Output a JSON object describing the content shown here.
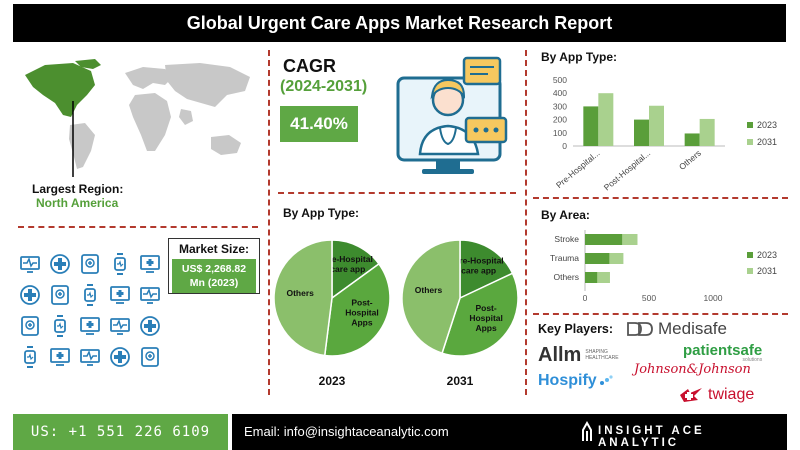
{
  "title": "Global Urgent Care Apps Market Research Report",
  "region": {
    "label": "Largest Region:",
    "value": "North America"
  },
  "market_size": {
    "label": "Market Size:",
    "value_line1": "US$ 2,268.82",
    "value_line2": "Mn (2023)"
  },
  "cagr": {
    "label": "CAGR",
    "period": "(2024-2031)",
    "value": "41.40%"
  },
  "pie_section_title": "By App Type:",
  "bar_section_title": "By App Type:",
  "area_section_title": "By Area:",
  "key_players_title": "Key Players:",
  "players": [
    "Medisafe",
    "Allm",
    "SHAPING HEALTHCARE",
    "patientsafe",
    "solutions",
    "Hospify",
    "Johnson&Johnson",
    "twiage"
  ],
  "footer": {
    "phone": "US: +1 551 226 6109",
    "email": "Email: info@insightaceanalytic.com",
    "brand": "INSIGHT ACE ANALYTIC"
  },
  "colors": {
    "series_2023": "#5a9e3a",
    "series_2031": "#a9d18e",
    "pie_dark": "#3d8b2e",
    "pie_mid": "#5aa83e",
    "pie_light": "#8bbf6b",
    "accent_red": "#b33a2e"
  },
  "icons": [
    "monitor-heart-icon",
    "medical-cross-icon",
    "tablet-medical-icon",
    "smartwatch-icon",
    "screen-medical-icon",
    "chat-medical-icon",
    "doctor-icon",
    "tablet-cross-icon",
    "stethoscope-icon",
    "pill-phone-icon",
    "clipboard-icon",
    "shield-cross-icon",
    "chat-bubbles-icon",
    "user-circle-icon",
    "globe-medical-icon",
    "headset-doctor-icon",
    "laptop-medical-icon",
    "heartbeat-icon",
    "doctor-screen-icon",
    "first-aid-kit-icon"
  ],
  "chart_data": [
    {
      "type": "pie",
      "title": "2023",
      "labels": [
        "Pre-Hospital care app",
        "Post-Hospital Apps",
        "Others"
      ],
      "values": [
        15,
        37,
        48
      ]
    },
    {
      "type": "pie",
      "title": "2031",
      "labels": [
        "Pre-Hospital care app",
        "Post-Hospital Apps",
        "Others"
      ],
      "values": [
        18,
        37,
        45
      ]
    },
    {
      "type": "bar",
      "orientation": "vertical",
      "categories": [
        "Pre-Hospital...",
        "Post-Hospital...",
        "Others"
      ],
      "series": [
        {
          "name": "2023",
          "values": [
            300,
            200,
            95
          ]
        },
        {
          "name": "2031",
          "values": [
            400,
            305,
            205
          ]
        }
      ],
      "ylim": [
        0,
        500
      ],
      "yticks": [
        0,
        100,
        200,
        300,
        400,
        500
      ],
      "legend": "right"
    },
    {
      "type": "bar",
      "orientation": "horizontal",
      "categories": [
        "Stroke",
        "Trauma",
        "Others"
      ],
      "series": [
        {
          "name": "2023",
          "values": [
            290,
            190,
            95
          ]
        },
        {
          "name": "2031",
          "values": [
            410,
            300,
            195
          ]
        }
      ],
      "xlim": [
        0,
        1000
      ],
      "xticks": [
        0,
        500,
        1000
      ],
      "legend": "right"
    }
  ]
}
